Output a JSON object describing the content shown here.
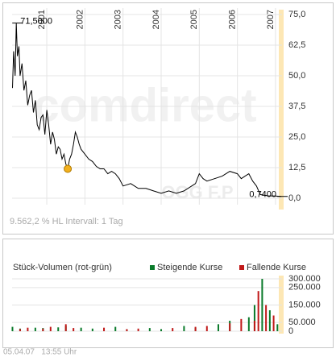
{
  "chart_data": [
    {
      "type": "line",
      "watermark": "comdirect",
      "symbol_watermark": "OGG F.P",
      "note": "9.562,2 % HL  Intervall: 1 Tag",
      "x": [
        2000.1,
        2000.13,
        2000.17,
        2000.2,
        2000.23,
        2000.27,
        2000.3,
        2000.35,
        2000.4,
        2000.45,
        2000.5,
        2000.55,
        2000.6,
        2000.65,
        2000.7,
        2000.75,
        2000.8,
        2000.85,
        2000.9,
        2000.95,
        2001.0,
        2001.05,
        2001.1,
        2001.15,
        2001.2,
        2001.25,
        2001.3,
        2001.35,
        2001.4,
        2001.45,
        2001.5,
        2001.55,
        2001.6,
        2001.65,
        2001.7,
        2001.75,
        2001.8,
        2001.85,
        2001.9,
        2002.0,
        2002.1,
        2002.2,
        2002.3,
        2002.4,
        2002.5,
        2002.6,
        2002.7,
        2002.8,
        2002.9,
        2003.0,
        2003.2,
        2003.4,
        2003.6,
        2003.8,
        2004.0,
        2004.2,
        2004.4,
        2004.6,
        2004.8,
        2004.9,
        2005.0,
        2005.1,
        2005.2,
        2005.4,
        2005.6,
        2005.8,
        2006.0,
        2006.1,
        2006.2,
        2006.3,
        2006.4,
        2006.5,
        2006.6,
        2006.8,
        2007.0,
        2007.1,
        2007.15
      ],
      "series": [
        {
          "color": "#000000",
          "values": [
            45,
            60,
            50,
            71.5,
            58,
            62,
            50,
            55,
            44,
            48,
            38,
            42,
            44,
            35,
            40,
            30,
            28,
            33,
            34,
            26,
            36,
            30,
            22,
            27,
            24,
            18,
            21,
            20,
            16,
            18,
            14,
            12,
            16,
            18,
            22,
            27,
            25,
            22,
            20,
            18,
            16,
            15,
            13,
            12,
            12,
            10,
            11,
            10,
            8,
            5,
            6,
            4,
            4,
            3,
            2,
            3,
            2,
            3,
            5,
            6,
            10,
            8,
            7,
            8,
            9,
            11,
            10,
            8,
            9,
            10,
            7,
            5,
            1.5,
            1,
            0.9,
            0.8,
            0.74
          ]
        }
      ],
      "annotations": [
        {
          "label": "71,5000",
          "value": 71.5
        },
        {
          "label": "0,7400",
          "value": 0.74
        }
      ],
      "xlim": [
        2000.09,
        2007.17
      ],
      "xticks": [
        2001,
        2002,
        2003,
        2004,
        2005,
        2006,
        2007
      ],
      "ylim": [
        0,
        75
      ],
      "yticks": [
        {
          "value": 0,
          "label": "0,0"
        },
        {
          "value": 12.5,
          "label": "12,5"
        },
        {
          "value": 25,
          "label": "25,0"
        },
        {
          "value": 37.5,
          "label": "37,5"
        },
        {
          "value": 50,
          "label": "50,0"
        },
        {
          "value": 62.5,
          "label": "62,5"
        },
        {
          "value": 75,
          "label": "75,0"
        }
      ],
      "grid": true
    },
    {
      "type": "bar",
      "title": "Stück-Volumen (rot-grün)",
      "x": [
        2000.1,
        2000.3,
        2000.5,
        2000.7,
        2000.9,
        2001.1,
        2001.3,
        2001.5,
        2001.7,
        2001.9,
        2002.2,
        2002.5,
        2002.8,
        2003.1,
        2003.4,
        2003.7,
        2004.0,
        2004.3,
        2004.6,
        2004.9,
        2005.2,
        2005.5,
        2005.8,
        2006.1,
        2006.3,
        2006.45,
        2006.55,
        2006.65,
        2006.75,
        2006.85,
        2006.95,
        2007.05
      ],
      "series": [
        {
          "name": "Steigende Kurse",
          "color": "#0a7a2a",
          "values": [
            25000,
            15000,
            null,
            20000,
            18000,
            null,
            22000,
            30000,
            null,
            20000,
            15000,
            null,
            25000,
            10000,
            null,
            18000,
            12000,
            null,
            30000,
            20000,
            null,
            40000,
            60000,
            null,
            80000,
            150000,
            null,
            300000,
            null,
            120000,
            null,
            40000
          ]
        },
        {
          "name": "Fallende Kurse",
          "color": "#c01818",
          "values": [
            null,
            12000,
            20000,
            null,
            15000,
            25000,
            null,
            40000,
            18000,
            null,
            null,
            20000,
            null,
            12000,
            15000,
            null,
            null,
            18000,
            null,
            25000,
            30000,
            null,
            45000,
            70000,
            null,
            60000,
            230000,
            null,
            150000,
            null,
            90000,
            null
          ]
        }
      ],
      "xlim": [
        2000.09,
        2007.17
      ],
      "ylim": [
        0,
        300000
      ],
      "yticks": [
        0,
        {
          "value": 50000,
          "label": "50.000"
        },
        {
          "value": 150000,
          "label": "150.000"
        },
        {
          "value": 250000,
          "label": "250.000"
        },
        {
          "value": 300000,
          "label": "300.000"
        }
      ],
      "grid": true
    }
  ],
  "timestamp": "05.04.07   13:55 Uhr"
}
